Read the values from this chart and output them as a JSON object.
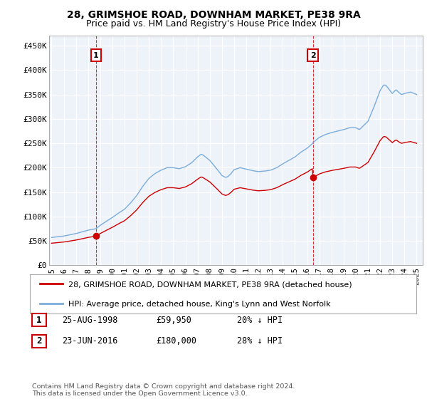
{
  "title": "28, GRIMSHOE ROAD, DOWNHAM MARKET, PE38 9RA",
  "subtitle": "Price paid vs. HM Land Registry's House Price Index (HPI)",
  "legend_label_red": "28, GRIMSHOE ROAD, DOWNHAM MARKET, PE38 9RA (detached house)",
  "legend_label_blue": "HPI: Average price, detached house, King's Lynn and West Norfolk",
  "footnote": "Contains HM Land Registry data © Crown copyright and database right 2024.\nThis data is licensed under the Open Government Licence v3.0.",
  "table_rows": [
    {
      "num": "1",
      "date": "25-AUG-1998",
      "price": "£59,950",
      "hpi": "20% ↓ HPI"
    },
    {
      "num": "2",
      "date": "23-JUN-2016",
      "price": "£180,000",
      "hpi": "28% ↓ HPI"
    }
  ],
  "marker1_x": 1998.65,
  "marker1_y": 59950,
  "marker2_x": 2016.47,
  "marker2_y": 180000,
  "vline1_x": 1998.65,
  "vline2_x": 2016.47,
  "ylim": [
    0,
    470000
  ],
  "xlim_start": 1994.8,
  "xlim_end": 2025.5,
  "yticks": [
    0,
    50000,
    100000,
    150000,
    200000,
    250000,
    300000,
    350000,
    400000,
    450000
  ],
  "ytick_labels": [
    "£0",
    "£50K",
    "£100K",
    "£150K",
    "£200K",
    "£250K",
    "£300K",
    "£350K",
    "£400K",
    "£450K"
  ],
  "xticks": [
    1995,
    1996,
    1997,
    1998,
    1999,
    2000,
    2001,
    2002,
    2003,
    2004,
    2005,
    2006,
    2007,
    2008,
    2009,
    2010,
    2011,
    2012,
    2013,
    2014,
    2015,
    2016,
    2017,
    2018,
    2019,
    2020,
    2021,
    2022,
    2023,
    2024,
    2025
  ],
  "red_color": "#cc0000",
  "blue_color": "#7aaddb",
  "annotation1_label": "1",
  "annotation2_label": "2",
  "background_color": "#ffffff",
  "grid_color": "#dddddd",
  "hpi_years": [
    1995.0,
    1995.08,
    1995.17,
    1995.25,
    1995.33,
    1995.42,
    1995.5,
    1995.58,
    1995.67,
    1995.75,
    1995.83,
    1995.92,
    1996.0,
    1996.08,
    1996.17,
    1996.25,
    1996.33,
    1996.42,
    1996.5,
    1996.58,
    1996.67,
    1996.75,
    1996.83,
    1996.92,
    1997.0,
    1997.08,
    1997.17,
    1997.25,
    1997.33,
    1997.42,
    1997.5,
    1997.58,
    1997.67,
    1997.75,
    1997.83,
    1997.92,
    1998.0,
    1998.08,
    1998.17,
    1998.25,
    1998.33,
    1998.42,
    1998.5,
    1998.58,
    1998.67,
    1998.75,
    1998.83,
    1998.92,
    1999.0,
    1999.08,
    1999.17,
    1999.25,
    1999.33,
    1999.42,
    1999.5,
    1999.58,
    1999.67,
    1999.75,
    1999.83,
    1999.92,
    2000.0,
    2000.08,
    2000.17,
    2000.25,
    2000.33,
    2000.42,
    2000.5,
    2000.58,
    2000.67,
    2000.75,
    2000.83,
    2000.92,
    2001.0,
    2001.08,
    2001.17,
    2001.25,
    2001.33,
    2001.42,
    2001.5,
    2001.58,
    2001.67,
    2001.75,
    2001.83,
    2001.92,
    2002.0,
    2002.08,
    2002.17,
    2002.25,
    2002.33,
    2002.42,
    2002.5,
    2002.58,
    2002.67,
    2002.75,
    2002.83,
    2002.92,
    2003.0,
    2003.08,
    2003.17,
    2003.25,
    2003.33,
    2003.42,
    2003.5,
    2003.58,
    2003.67,
    2003.75,
    2003.83,
    2003.92,
    2004.0,
    2004.08,
    2004.17,
    2004.25,
    2004.33,
    2004.42,
    2004.5,
    2004.58,
    2004.67,
    2004.75,
    2004.83,
    2004.92,
    2005.0,
    2005.08,
    2005.17,
    2005.25,
    2005.33,
    2005.42,
    2005.5,
    2005.58,
    2005.67,
    2005.75,
    2005.83,
    2005.92,
    2006.0,
    2006.08,
    2006.17,
    2006.25,
    2006.33,
    2006.42,
    2006.5,
    2006.58,
    2006.67,
    2006.75,
    2006.83,
    2006.92,
    2007.0,
    2007.08,
    2007.17,
    2007.25,
    2007.33,
    2007.42,
    2007.5,
    2007.58,
    2007.67,
    2007.75,
    2007.83,
    2007.92,
    2008.0,
    2008.08,
    2008.17,
    2008.25,
    2008.33,
    2008.42,
    2008.5,
    2008.58,
    2008.67,
    2008.75,
    2008.83,
    2008.92,
    2009.0,
    2009.08,
    2009.17,
    2009.25,
    2009.33,
    2009.42,
    2009.5,
    2009.58,
    2009.67,
    2009.75,
    2009.83,
    2009.92,
    2010.0,
    2010.08,
    2010.17,
    2010.25,
    2010.33,
    2010.42,
    2010.5,
    2010.58,
    2010.67,
    2010.75,
    2010.83,
    2010.92,
    2011.0,
    2011.08,
    2011.17,
    2011.25,
    2011.33,
    2011.42,
    2011.5,
    2011.58,
    2011.67,
    2011.75,
    2011.83,
    2011.92,
    2012.0,
    2012.08,
    2012.17,
    2012.25,
    2012.33,
    2012.42,
    2012.5,
    2012.58,
    2012.67,
    2012.75,
    2012.83,
    2012.92,
    2013.0,
    2013.08,
    2013.17,
    2013.25,
    2013.33,
    2013.42,
    2013.5,
    2013.58,
    2013.67,
    2013.75,
    2013.83,
    2013.92,
    2014.0,
    2014.08,
    2014.17,
    2014.25,
    2014.33,
    2014.42,
    2014.5,
    2014.58,
    2014.67,
    2014.75,
    2014.83,
    2014.92,
    2015.0,
    2015.08,
    2015.17,
    2015.25,
    2015.33,
    2015.42,
    2015.5,
    2015.58,
    2015.67,
    2015.75,
    2015.83,
    2015.92,
    2016.0,
    2016.08,
    2016.17,
    2016.25,
    2016.33,
    2016.42,
    2016.5,
    2016.58,
    2016.67,
    2016.75,
    2016.83,
    2016.92,
    2017.0,
    2017.08,
    2017.17,
    2017.25,
    2017.33,
    2017.42,
    2017.5,
    2017.58,
    2017.67,
    2017.75,
    2017.83,
    2017.92,
    2018.0,
    2018.08,
    2018.17,
    2018.25,
    2018.33,
    2018.42,
    2018.5,
    2018.58,
    2018.67,
    2018.75,
    2018.83,
    2018.92,
    2019.0,
    2019.08,
    2019.17,
    2019.25,
    2019.33,
    2019.42,
    2019.5,
    2019.58,
    2019.67,
    2019.75,
    2019.83,
    2019.92,
    2020.0,
    2020.08,
    2020.17,
    2020.25,
    2020.33,
    2020.42,
    2020.5,
    2020.58,
    2020.67,
    2020.75,
    2020.83,
    2020.92,
    2021.0,
    2021.08,
    2021.17,
    2021.25,
    2021.33,
    2021.42,
    2021.5,
    2021.58,
    2021.67,
    2021.75,
    2021.83,
    2021.92,
    2022.0,
    2022.08,
    2022.17,
    2022.25,
    2022.33,
    2022.42,
    2022.5,
    2022.58,
    2022.67,
    2022.75,
    2022.83,
    2022.92,
    2023.0,
    2023.08,
    2023.17,
    2023.25,
    2023.33,
    2023.42,
    2023.5,
    2023.58,
    2023.67,
    2023.75,
    2023.83,
    2023.92,
    2024.0,
    2024.08,
    2024.17,
    2024.25,
    2024.33,
    2024.42,
    2024.5,
    2024.58,
    2024.67,
    2024.75,
    2024.83,
    2024.92,
    2025.0
  ]
}
